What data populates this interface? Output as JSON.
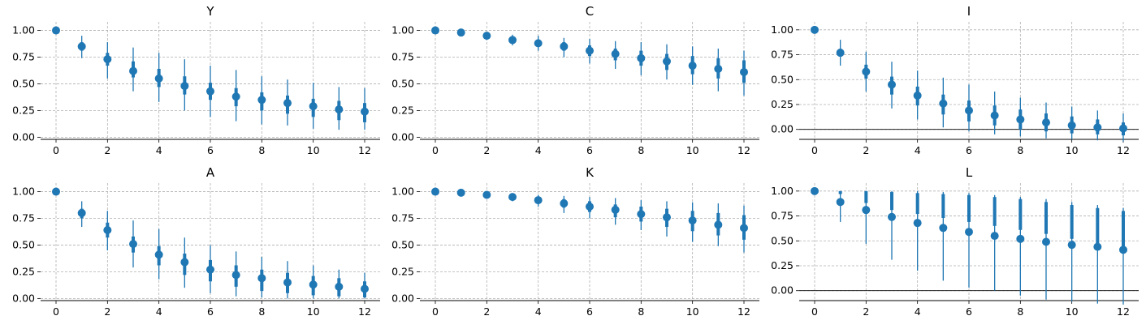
{
  "chart_data": [
    {
      "type": "scatter",
      "title": "Y",
      "x": [
        0,
        1,
        2,
        3,
        4,
        5,
        6,
        7,
        8,
        9,
        10,
        11,
        12
      ],
      "median": [
        1.0,
        0.85,
        0.73,
        0.62,
        0.55,
        0.48,
        0.43,
        0.38,
        0.35,
        0.32,
        0.29,
        0.26,
        0.24
      ],
      "inner_low": [
        1.0,
        0.81,
        0.67,
        0.56,
        0.47,
        0.4,
        0.35,
        0.29,
        0.25,
        0.22,
        0.19,
        0.16,
        0.14
      ],
      "inner_high": [
        1.0,
        0.89,
        0.79,
        0.71,
        0.64,
        0.57,
        0.51,
        0.46,
        0.42,
        0.39,
        0.36,
        0.34,
        0.32
      ],
      "outer_low": [
        1.0,
        0.74,
        0.55,
        0.43,
        0.33,
        0.25,
        0.19,
        0.15,
        0.12,
        0.11,
        0.08,
        0.07,
        0.07
      ],
      "outer_high": [
        1.0,
        0.95,
        0.89,
        0.84,
        0.79,
        0.73,
        0.67,
        0.63,
        0.57,
        0.54,
        0.51,
        0.47,
        0.46
      ],
      "ylim": [
        -0.02,
        1.08
      ],
      "yticks": [
        "0.00",
        "0.25",
        "0.50",
        "0.75",
        "1.00"
      ],
      "xticks": [
        "0",
        "2",
        "4",
        "6",
        "8",
        "10",
        "12"
      ],
      "grid": true
    },
    {
      "type": "scatter",
      "title": "C",
      "x": [
        0,
        1,
        2,
        3,
        4,
        5,
        6,
        7,
        8,
        9,
        10,
        11,
        12
      ],
      "median": [
        1.0,
        0.98,
        0.95,
        0.91,
        0.88,
        0.85,
        0.81,
        0.78,
        0.74,
        0.71,
        0.67,
        0.64,
        0.61
      ],
      "inner_low": [
        1.0,
        0.97,
        0.93,
        0.89,
        0.85,
        0.81,
        0.76,
        0.72,
        0.67,
        0.63,
        0.59,
        0.55,
        0.51
      ],
      "inner_high": [
        1.0,
        0.99,
        0.97,
        0.94,
        0.91,
        0.89,
        0.86,
        0.83,
        0.81,
        0.78,
        0.76,
        0.74,
        0.72
      ],
      "outer_low": [
        1.0,
        0.96,
        0.91,
        0.86,
        0.81,
        0.75,
        0.69,
        0.64,
        0.58,
        0.54,
        0.49,
        0.43,
        0.39
      ],
      "outer_high": [
        1.0,
        1.0,
        0.98,
        0.96,
        0.95,
        0.93,
        0.92,
        0.9,
        0.89,
        0.87,
        0.85,
        0.83,
        0.81
      ],
      "ylim": [
        -0.02,
        1.08
      ],
      "yticks": [
        "0.00",
        "0.25",
        "0.50",
        "0.75",
        "1.00"
      ],
      "xticks": [
        "0",
        "2",
        "4",
        "6",
        "8",
        "10",
        "12"
      ],
      "grid": true
    },
    {
      "type": "scatter",
      "title": "I",
      "x": [
        0,
        1,
        2,
        3,
        4,
        5,
        6,
        7,
        8,
        9,
        10,
        11,
        12
      ],
      "median": [
        1.0,
        0.77,
        0.58,
        0.45,
        0.34,
        0.26,
        0.19,
        0.14,
        0.1,
        0.07,
        0.04,
        0.02,
        0.01
      ],
      "inner_low": [
        1.0,
        0.73,
        0.51,
        0.35,
        0.24,
        0.15,
        0.08,
        0.04,
        0.0,
        -0.02,
        -0.04,
        -0.05,
        -0.06
      ],
      "inner_high": [
        1.0,
        0.81,
        0.65,
        0.53,
        0.43,
        0.35,
        0.29,
        0.24,
        0.2,
        0.16,
        0.13,
        0.1,
        0.07
      ],
      "outer_low": [
        1.0,
        0.64,
        0.38,
        0.21,
        0.1,
        0.02,
        -0.02,
        -0.05,
        -0.07,
        -0.09,
        -0.1,
        -0.11,
        -0.12
      ],
      "outer_high": [
        1.0,
        0.9,
        0.78,
        0.68,
        0.59,
        0.52,
        0.45,
        0.38,
        0.32,
        0.27,
        0.23,
        0.19,
        0.16
      ],
      "ylim": [
        -0.1,
        1.08
      ],
      "yticks": [
        "0.00",
        "0.25",
        "0.50",
        "0.75",
        "1.00"
      ],
      "xticks": [
        "0",
        "2",
        "4",
        "6",
        "8",
        "10",
        "12"
      ],
      "grid": true,
      "zero_line": true
    },
    {
      "type": "scatter",
      "title": "A",
      "x": [
        0,
        1,
        2,
        3,
        4,
        5,
        6,
        7,
        8,
        9,
        10,
        11,
        12
      ],
      "median": [
        1.0,
        0.8,
        0.64,
        0.51,
        0.41,
        0.34,
        0.27,
        0.22,
        0.19,
        0.15,
        0.13,
        0.11,
        0.09
      ],
      "inner_low": [
        1.0,
        0.75,
        0.57,
        0.43,
        0.31,
        0.22,
        0.16,
        0.11,
        0.07,
        0.05,
        0.03,
        0.02,
        0.01
      ],
      "inner_high": [
        1.0,
        0.84,
        0.71,
        0.58,
        0.49,
        0.42,
        0.36,
        0.31,
        0.27,
        0.24,
        0.21,
        0.19,
        0.16
      ],
      "outer_low": [
        1.0,
        0.67,
        0.45,
        0.29,
        0.18,
        0.1,
        0.05,
        0.02,
        0.01,
        0.0,
        0.0,
        0.0,
        0.0
      ],
      "outer_high": [
        1.0,
        0.91,
        0.82,
        0.73,
        0.65,
        0.57,
        0.5,
        0.44,
        0.39,
        0.35,
        0.31,
        0.27,
        0.24
      ],
      "ylim": [
        -0.02,
        1.08
      ],
      "yticks": [
        "0.00",
        "0.25",
        "0.50",
        "0.75",
        "1.00"
      ],
      "xticks": [
        "0",
        "2",
        "4",
        "6",
        "8",
        "10",
        "12"
      ],
      "grid": true
    },
    {
      "type": "scatter",
      "title": "K",
      "x": [
        0,
        1,
        2,
        3,
        4,
        5,
        6,
        7,
        8,
        9,
        10,
        11,
        12
      ],
      "median": [
        1.0,
        0.99,
        0.97,
        0.95,
        0.92,
        0.89,
        0.86,
        0.83,
        0.79,
        0.76,
        0.73,
        0.69,
        0.66
      ],
      "inner_low": [
        1.0,
        0.99,
        0.96,
        0.93,
        0.89,
        0.85,
        0.81,
        0.76,
        0.72,
        0.67,
        0.63,
        0.59,
        0.55
      ],
      "inner_high": [
        1.0,
        1.0,
        0.98,
        0.96,
        0.95,
        0.93,
        0.91,
        0.88,
        0.86,
        0.84,
        0.82,
        0.8,
        0.78
      ],
      "outer_low": [
        1.0,
        0.98,
        0.95,
        0.91,
        0.86,
        0.8,
        0.75,
        0.69,
        0.64,
        0.58,
        0.53,
        0.49,
        0.43
      ],
      "outer_high": [
        1.0,
        1.0,
        0.99,
        0.98,
        0.97,
        0.96,
        0.95,
        0.94,
        0.92,
        0.91,
        0.9,
        0.89,
        0.87
      ],
      "ylim": [
        -0.02,
        1.08
      ],
      "yticks": [
        "0.00",
        "0.25",
        "0.50",
        "0.75",
        "1.00"
      ],
      "xticks": [
        "0",
        "2",
        "4",
        "6",
        "8",
        "10",
        "12"
      ],
      "grid": true
    },
    {
      "type": "scatter",
      "title": "L",
      "x": [
        0,
        1,
        2,
        3,
        4,
        5,
        6,
        7,
        8,
        9,
        10,
        11,
        12
      ],
      "median": [
        1.0,
        0.89,
        0.81,
        0.74,
        0.68,
        0.63,
        0.59,
        0.55,
        0.52,
        0.49,
        0.46,
        0.44,
        0.41
      ],
      "inner_low": [
        1.0,
        0.97,
        0.88,
        0.81,
        0.77,
        0.73,
        0.69,
        0.65,
        0.61,
        0.57,
        0.52,
        0.45,
        0.39
      ],
      "inner_high": [
        1.0,
        1.0,
        1.0,
        0.99,
        0.98,
        0.97,
        0.96,
        0.94,
        0.92,
        0.89,
        0.86,
        0.83,
        0.8
      ],
      "outer_low": [
        1.0,
        0.69,
        0.47,
        0.31,
        0.2,
        0.1,
        0.03,
        0.0,
        -0.05,
        -0.09,
        -0.11,
        -0.13,
        -0.14
      ],
      "outer_high": [
        1.0,
        1.0,
        1.0,
        1.0,
        1.0,
        0.99,
        0.98,
        0.96,
        0.94,
        0.92,
        0.89,
        0.86,
        0.83
      ],
      "ylim": [
        -0.1,
        1.08
      ],
      "yticks": [
        "0.00",
        "0.25",
        "0.50",
        "0.75",
        "1.00"
      ],
      "xticks": [
        "0",
        "2",
        "4",
        "6",
        "8",
        "10",
        "12"
      ],
      "grid": true,
      "zero_line": true
    }
  ],
  "colors": {
    "series": "#1f77b4",
    "grid": "#b0b0b0",
    "axis": "#000000"
  }
}
